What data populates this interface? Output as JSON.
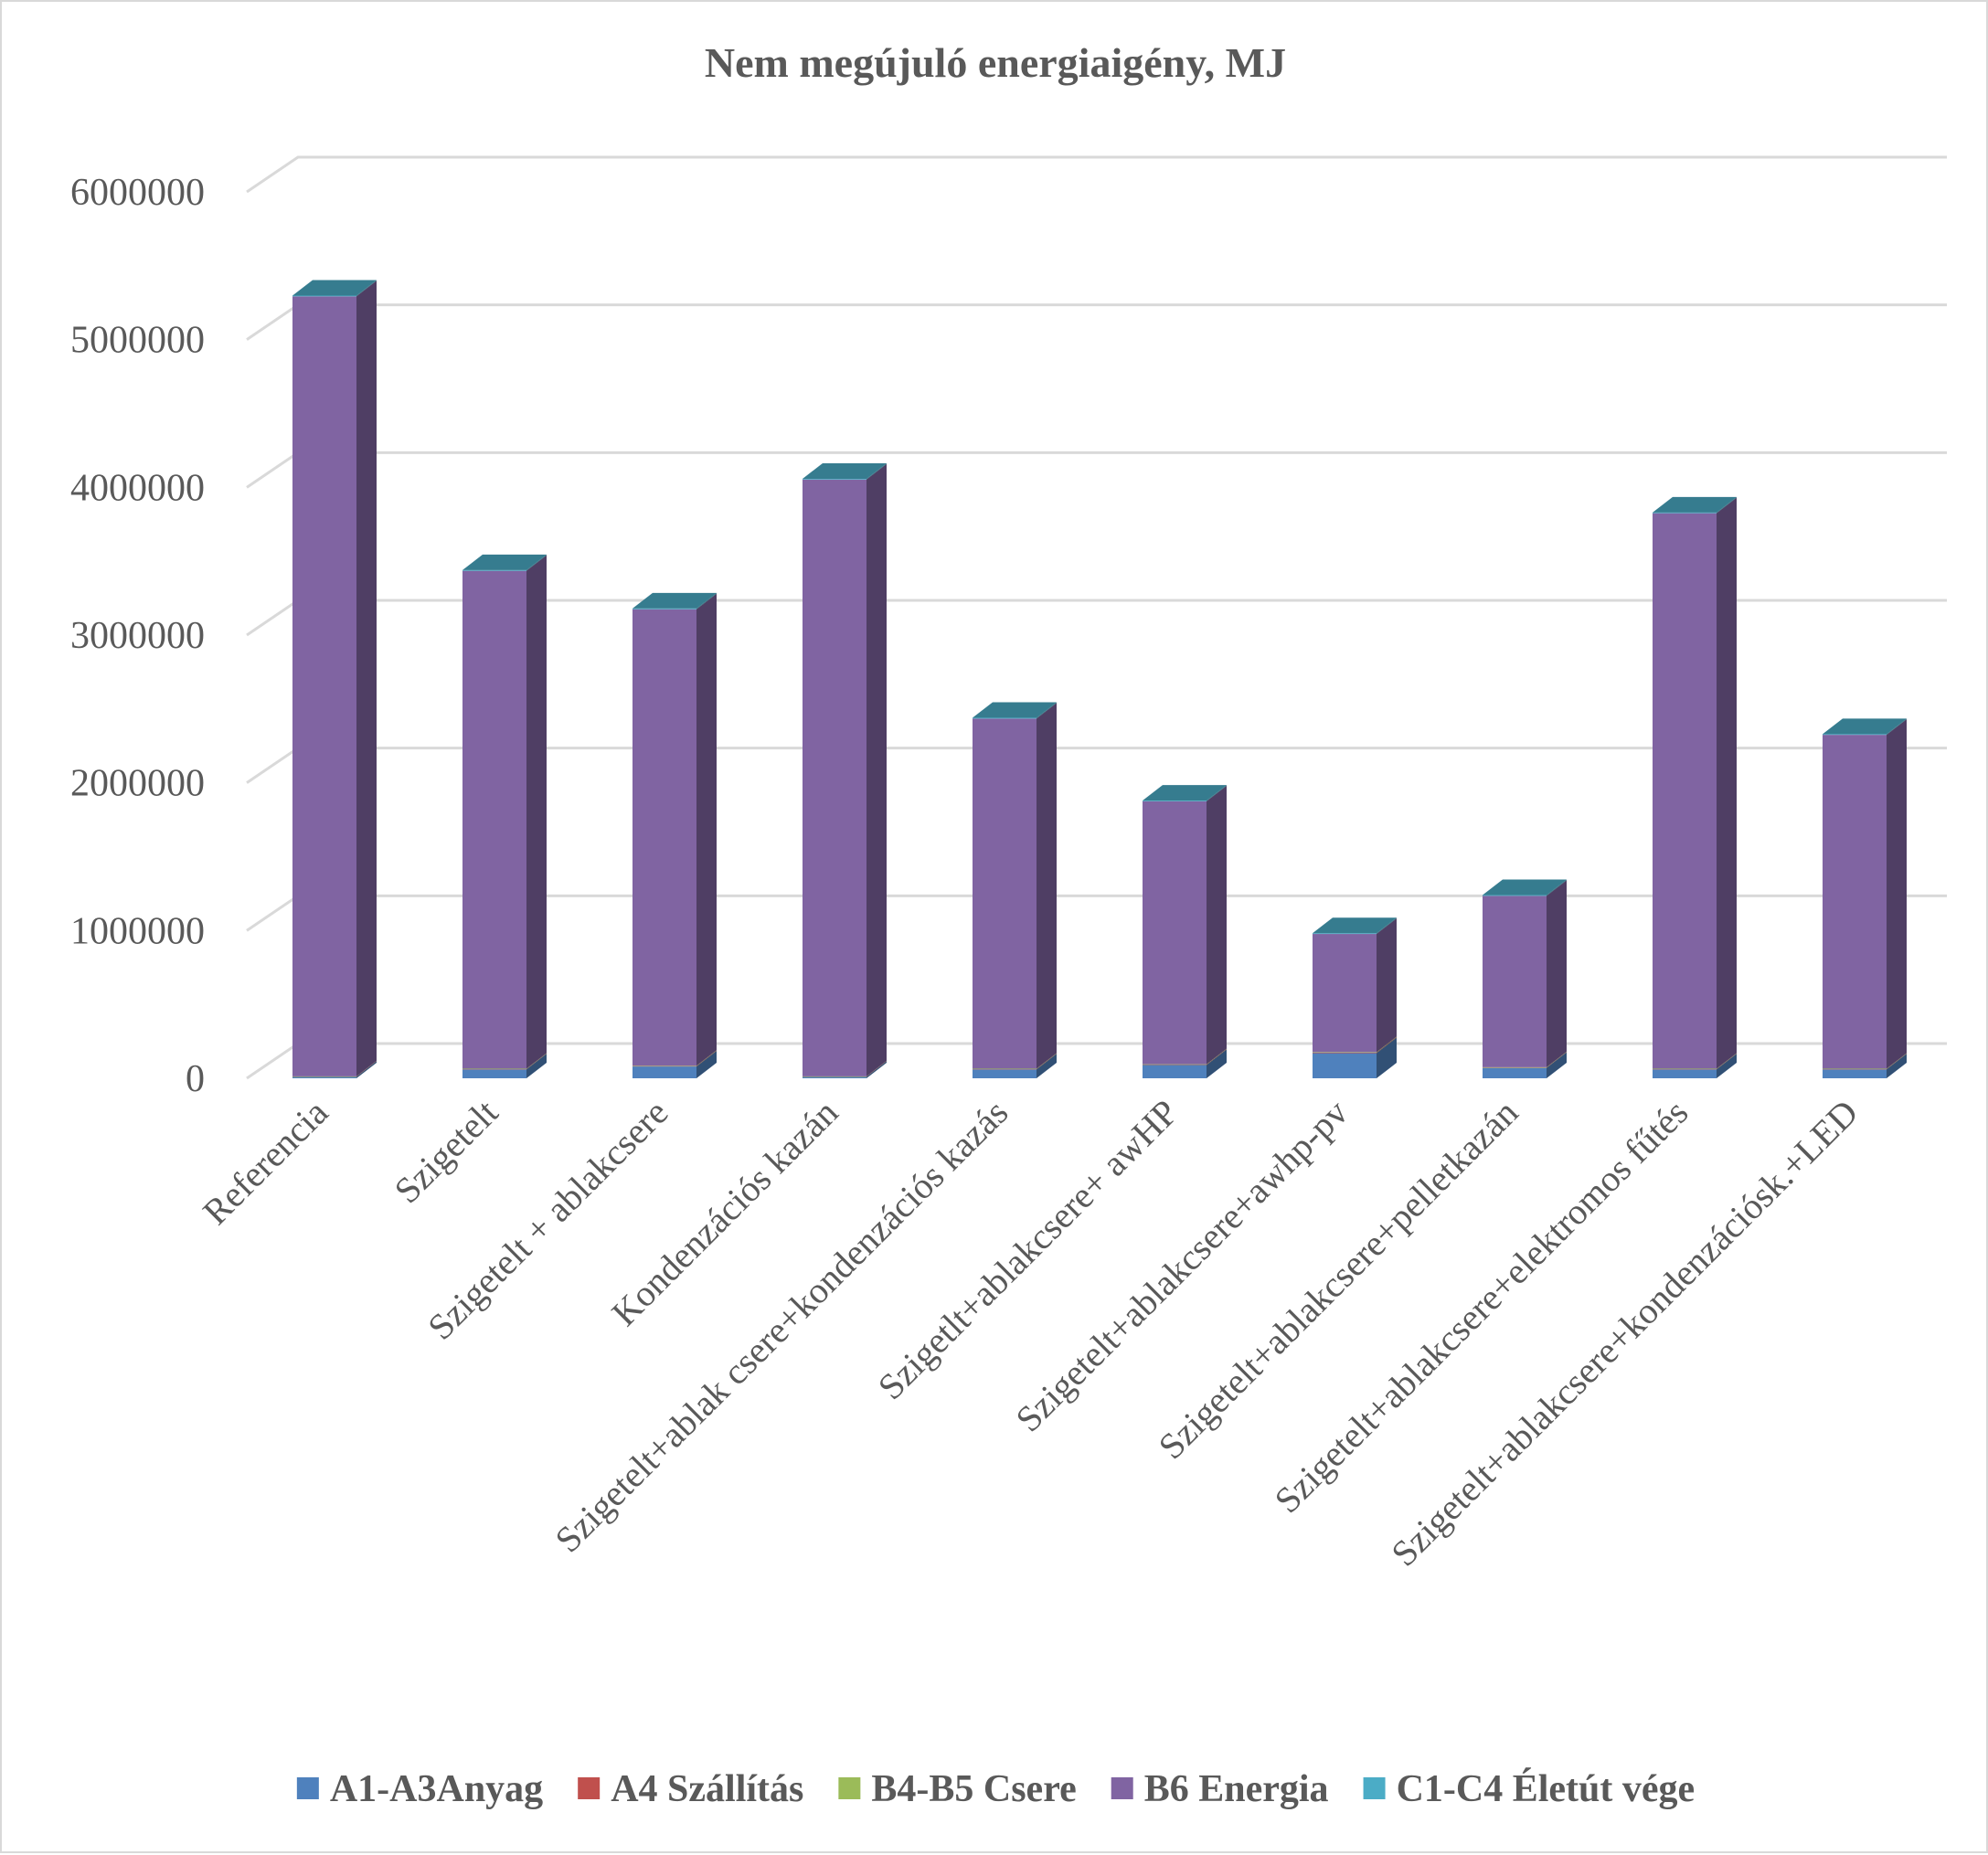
{
  "chart_data": {
    "type": "bar",
    "stacked": true,
    "three_d": true,
    "title": "Nem megújuló energiaigény, MJ",
    "xlabel": "",
    "ylabel": "",
    "ylim": [
      0,
      6000000
    ],
    "y_ticks": [
      0,
      1000000,
      2000000,
      3000000,
      4000000,
      5000000,
      6000000
    ],
    "y_tick_labels": [
      "0",
      "1000000",
      "2000000",
      "3000000",
      "4000000",
      "5000000",
      "6000000"
    ],
    "grid": true,
    "legend_position": "bottom",
    "categories": [
      "Referencia",
      "Szigetelt",
      "Szigetelt + ablakcsere",
      "Kondenzációs kazán",
      "Szigetelt+ablak csere+kondenzációs kazás",
      "Szigetlt+ablakcsere+ awHP",
      "Szigetelt+ablakcsere+awhp-pv",
      "Szigetelt+ablakcsere+pelletkazán",
      "Szigetelt+ablakcsere+elektromos fűtés",
      "Szigetelt+ablakcsere+kondenzációsk.+LED"
    ],
    "series": [
      {
        "name": "A1-A3Anyag",
        "color": "#4f81bd",
        "values": [
          10000,
          60000,
          80000,
          10000,
          60000,
          90000,
          170000,
          70000,
          60000,
          60000
        ]
      },
      {
        "name": "A4 Szállítás",
        "color": "#c0504d",
        "values": [
          2000,
          3000,
          3000,
          2000,
          3000,
          3000,
          4000,
          3000,
          3000,
          3000
        ]
      },
      {
        "name": "B4-B5 Csere",
        "color": "#9bbb59",
        "values": [
          1000,
          2000,
          2000,
          1000,
          2000,
          2000,
          3000,
          2000,
          2000,
          2000
        ]
      },
      {
        "name": "B6 Energia",
        "color": "#8064a2",
        "values": [
          5280000,
          3370000,
          3090000,
          4040000,
          2370000,
          1780000,
          800000,
          1160000,
          3760000,
          2260000
        ]
      },
      {
        "name": "C1-C4 Életút vége",
        "color": "#4bacc6",
        "values": [
          5000,
          5000,
          5000,
          5000,
          5000,
          5000,
          5000,
          5000,
          5000,
          5000
        ]
      }
    ]
  }
}
